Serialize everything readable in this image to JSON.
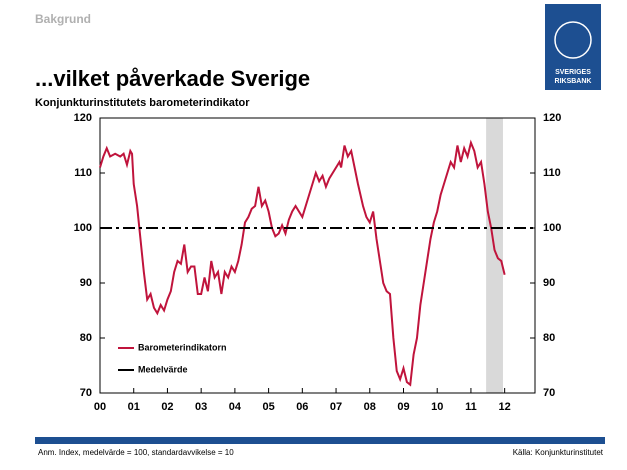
{
  "header": {
    "section": "Bakgrund",
    "logo": [
      "SVERIGES",
      "RIKSBANK"
    ]
  },
  "footer": {
    "note": "Anm. Index, medelvärde = 100, standardavvikelse = 10",
    "source": "Källa: Konjunkturinstitutet"
  },
  "chart_data": {
    "type": "line",
    "title": "...vilket påverkade Sverige",
    "subtitle": "Konjunkturinstitutets barometerindikator",
    "xlim": [
      2000,
      2012.9
    ],
    "xticks": [
      {
        "value": 2000,
        "label": "00"
      },
      {
        "value": 2001,
        "label": "01"
      },
      {
        "value": 2002,
        "label": "02"
      },
      {
        "value": 2003,
        "label": "03"
      },
      {
        "value": 2004,
        "label": "04"
      },
      {
        "value": 2005,
        "label": "05"
      },
      {
        "value": 2006,
        "label": "06"
      },
      {
        "value": 2007,
        "label": "07"
      },
      {
        "value": 2008,
        "label": "08"
      },
      {
        "value": 2009,
        "label": "09"
      },
      {
        "value": 2010,
        "label": "10"
      },
      {
        "value": 2011,
        "label": "11"
      },
      {
        "value": 2012,
        "label": "12"
      }
    ],
    "ylim": [
      70,
      120
    ],
    "yticks": [
      70,
      80,
      90,
      100,
      110,
      120
    ],
    "y2lim": [
      70,
      120
    ],
    "y2ticks": [
      70,
      80,
      90,
      100,
      110,
      120
    ],
    "shaded_x": [
      2011.45,
      2011.95
    ],
    "legend": "bottom-left",
    "series": [
      {
        "name": "Barometerindikatorn",
        "color": "#c0143c",
        "style": "solid",
        "x": [
          2000.0,
          2000.1,
          2000.2,
          2000.3,
          2000.45,
          2000.6,
          2000.7,
          2000.8,
          2000.9,
          2000.95,
          2001.0,
          2001.1,
          2001.2,
          2001.3,
          2001.4,
          2001.5,
          2001.6,
          2001.7,
          2001.8,
          2001.9,
          2002.0,
          2002.1,
          2002.2,
          2002.3,
          2002.4,
          2002.5,
          2002.6,
          2002.7,
          2002.8,
          2002.9,
          2003.0,
          2003.1,
          2003.2,
          2003.3,
          2003.4,
          2003.5,
          2003.6,
          2003.7,
          2003.8,
          2003.9,
          2004.0,
          2004.1,
          2004.2,
          2004.3,
          2004.4,
          2004.5,
          2004.6,
          2004.7,
          2004.8,
          2004.9,
          2005.0,
          2005.1,
          2005.2,
          2005.3,
          2005.4,
          2005.5,
          2005.6,
          2005.7,
          2005.8,
          2005.9,
          2006.0,
          2006.1,
          2006.2,
          2006.3,
          2006.4,
          2006.5,
          2006.6,
          2006.7,
          2006.8,
          2006.9,
          2007.0,
          2007.1,
          2007.15,
          2007.25,
          2007.35,
          2007.45,
          2007.55,
          2007.65,
          2007.8,
          2007.9,
          2008.0,
          2008.1,
          2008.2,
          2008.3,
          2008.4,
          2008.5,
          2008.6,
          2008.7,
          2008.8,
          2008.9,
          2009.0,
          2009.1,
          2009.2,
          2009.3,
          2009.4,
          2009.5,
          2009.6,
          2009.7,
          2009.8,
          2009.9,
          2010.0,
          2010.1,
          2010.2,
          2010.3,
          2010.4,
          2010.5,
          2010.6,
          2010.7,
          2010.8,
          2010.9,
          2011.0,
          2011.1,
          2011.2,
          2011.3,
          2011.4,
          2011.5,
          2011.6,
          2011.7,
          2011.8,
          2011.9,
          2012.0
        ],
        "values": [
          111,
          113,
          114.5,
          113,
          113.5,
          113,
          113.5,
          111.5,
          114,
          113.5,
          108,
          104,
          98,
          92,
          87,
          88,
          85.5,
          84.5,
          86,
          85,
          87,
          88.5,
          92,
          94,
          93.5,
          97,
          92,
          93,
          93,
          88,
          88,
          91,
          88.5,
          94,
          91,
          92,
          88,
          92,
          91,
          93,
          92,
          94,
          97,
          101,
          102,
          103.5,
          104,
          107.5,
          104,
          105,
          103,
          100,
          98.5,
          99,
          100.5,
          99,
          101.5,
          103,
          104,
          103,
          102,
          104,
          106,
          108,
          110,
          108.5,
          109.5,
          107.5,
          109,
          110,
          111,
          112,
          111,
          115,
          113,
          114,
          111,
          108,
          104,
          102,
          101,
          103,
          98,
          94,
          90,
          88.5,
          88,
          80,
          74,
          72.5,
          74.5,
          72,
          71.5,
          77,
          80,
          86,
          90,
          94,
          98,
          101,
          103,
          106,
          108,
          110,
          112,
          111,
          115,
          112,
          114.5,
          113,
          115.5,
          114,
          111,
          112,
          108,
          103,
          100,
          96,
          94.5,
          94,
          91.5
        ]
      },
      {
        "name": "Medelvärde",
        "color": "#000000",
        "style": "dashdot",
        "x": [
          2000,
          2012.9
        ],
        "values": [
          100,
          100
        ]
      }
    ]
  }
}
